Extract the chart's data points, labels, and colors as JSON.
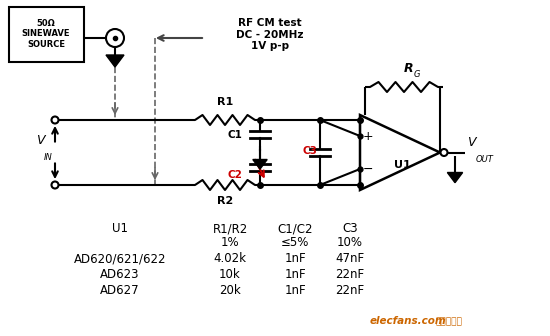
{
  "bg_color": "#ffffff",
  "fig_width": 5.5,
  "fig_height": 3.36,
  "dpi": 100,
  "table_headers": [
    "U1",
    "R1/R2",
    "C1/C2",
    "C3"
  ],
  "table_subheaders": [
    "",
    "1%",
    "≤5%",
    "10%"
  ],
  "table_rows": [
    [
      "AD620/621/622",
      "4.02k",
      "1nF",
      "47nF"
    ],
    [
      "AD623",
      "10k",
      "1nF",
      "22nF"
    ],
    [
      "AD627",
      "20k",
      "1nF",
      "22nF"
    ]
  ],
  "source_box_text": "50Ω\nSINEWAVE\nSOURCE",
  "rf_cm_text": "RF CM test\nDC - 20MHz\n1V p-p",
  "vin_label": "V",
  "vin_sub": "IN",
  "vout_label": "V",
  "vout_sub": "OUT",
  "rg_label": "R",
  "rg_sub": "G",
  "r1_label": "R1",
  "r2_label": "R2",
  "c1_label": "C1",
  "c2_label": "C2",
  "c3_label": "C3",
  "u1_label": "U1",
  "plus_label": "+",
  "minus_label": "−",
  "watermark_text": "elecfans.com",
  "watermark_cn": "电子发烧友",
  "line_color": "#000000",
  "dashed_color": "#666666",
  "red_color": "#cc0000",
  "watermark_color": "#cc6600"
}
